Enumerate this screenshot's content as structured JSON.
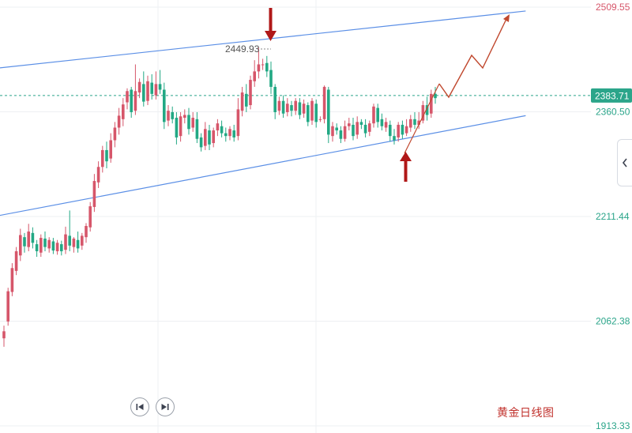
{
  "chart_data": {
    "type": "candlestick",
    "title": "",
    "xlabel": "",
    "ylabel": "",
    "ylim": [
      1913.33,
      2509.55
    ],
    "y_ticks": [
      "2509.55",
      "2360.50",
      "2211.44",
      "2062.38",
      "1913.33"
    ],
    "current_price": "2383.71",
    "annotation_high": "2449.93",
    "grid": true,
    "candles": [
      [
        2038,
        2048,
        2026,
        2056
      ],
      [
        2062,
        2105,
        2056,
        2110
      ],
      [
        2104,
        2138,
        2098,
        2145
      ],
      [
        2134,
        2162,
        2128,
        2168
      ],
      [
        2156,
        2185,
        2148,
        2194
      ],
      [
        2182,
        2169,
        2160,
        2188
      ],
      [
        2168,
        2190,
        2162,
        2201
      ],
      [
        2188,
        2174,
        2166,
        2196
      ],
      [
        2172,
        2162,
        2154,
        2178
      ],
      [
        2160,
        2181,
        2154,
        2186
      ],
      [
        2180,
        2168,
        2162,
        2190
      ],
      [
        2166,
        2178,
        2160,
        2182
      ],
      [
        2176,
        2163,
        2158,
        2181
      ],
      [
        2162,
        2174,
        2157,
        2178
      ],
      [
        2172,
        2162,
        2156,
        2177
      ],
      [
        2164,
        2186,
        2158,
        2197
      ],
      [
        2184,
        2170,
        2162,
        2220
      ],
      [
        2168,
        2180,
        2160,
        2182
      ],
      [
        2178,
        2166,
        2160,
        2190
      ],
      [
        2170,
        2184,
        2164,
        2188
      ],
      [
        2182,
        2198,
        2174,
        2202
      ],
      [
        2196,
        2226,
        2190,
        2232
      ],
      [
        2225,
        2262,
        2218,
        2272
      ],
      [
        2260,
        2282,
        2252,
        2290
      ],
      [
        2282,
        2306,
        2274,
        2312
      ],
      [
        2306,
        2290,
        2280,
        2318
      ],
      [
        2294,
        2320,
        2288,
        2330
      ],
      [
        2320,
        2338,
        2310,
        2346
      ],
      [
        2338,
        2355,
        2328,
        2366
      ],
      [
        2350,
        2371,
        2340,
        2380
      ],
      [
        2374,
        2390,
        2364,
        2394
      ],
      [
        2392,
        2360,
        2352,
        2396
      ],
      [
        2362,
        2390,
        2356,
        2428
      ],
      [
        2388,
        2403,
        2380,
        2408
      ],
      [
        2400,
        2375,
        2368,
        2418
      ],
      [
        2376,
        2404,
        2370,
        2412
      ],
      [
        2402,
        2386,
        2378,
        2414
      ],
      [
        2384,
        2400,
        2378,
        2418
      ],
      [
        2400,
        2392,
        2386,
        2420
      ],
      [
        2392,
        2346,
        2336,
        2402
      ],
      [
        2348,
        2362,
        2340,
        2370
      ],
      [
        2360,
        2350,
        2344,
        2368
      ],
      [
        2352,
        2324,
        2314,
        2360
      ],
      [
        2326,
        2354,
        2318,
        2360
      ],
      [
        2352,
        2356,
        2344,
        2364
      ],
      [
        2356,
        2336,
        2328,
        2366
      ],
      [
        2338,
        2352,
        2332,
        2360
      ],
      [
        2350,
        2322,
        2316,
        2360
      ],
      [
        2324,
        2310,
        2304,
        2330
      ],
      [
        2312,
        2336,
        2306,
        2346
      ],
      [
        2334,
        2314,
        2306,
        2342
      ],
      [
        2316,
        2334,
        2310,
        2338
      ],
      [
        2334,
        2344,
        2326,
        2350
      ],
      [
        2340,
        2330,
        2324,
        2348
      ],
      [
        2330,
        2326,
        2318,
        2338
      ],
      [
        2326,
        2336,
        2320,
        2340
      ],
      [
        2334,
        2324,
        2318,
        2342
      ],
      [
        2326,
        2364,
        2320,
        2380
      ],
      [
        2362,
        2388,
        2354,
        2396
      ],
      [
        2386,
        2368,
        2360,
        2400
      ],
      [
        2370,
        2406,
        2364,
        2412
      ],
      [
        2404,
        2418,
        2396,
        2434
      ],
      [
        2418,
        2428,
        2408,
        2452
      ],
      [
        2428,
        2428,
        2420,
        2436
      ],
      [
        2430,
        2418,
        2410,
        2440
      ],
      [
        2420,
        2396,
        2386,
        2432
      ],
      [
        2396,
        2360,
        2350,
        2400
      ],
      [
        2362,
        2376,
        2356,
        2382
      ],
      [
        2376,
        2358,
        2352,
        2384
      ],
      [
        2360,
        2372,
        2354,
        2380
      ],
      [
        2370,
        2362,
        2354,
        2376
      ],
      [
        2362,
        2376,
        2356,
        2380
      ],
      [
        2374,
        2356,
        2350,
        2380
      ],
      [
        2358,
        2372,
        2352,
        2378
      ],
      [
        2370,
        2346,
        2340,
        2374
      ],
      [
        2348,
        2376,
        2342,
        2380
      ],
      [
        2372,
        2346,
        2338,
        2378
      ],
      [
        2350,
        2350,
        2346,
        2354
      ],
      [
        2350,
        2396,
        2344,
        2398
      ],
      [
        2392,
        2328,
        2316,
        2396
      ],
      [
        2326,
        2340,
        2318,
        2346
      ],
      [
        2338,
        2334,
        2328,
        2344
      ],
      [
        2334,
        2322,
        2316,
        2340
      ],
      [
        2322,
        2340,
        2318,
        2348
      ],
      [
        2340,
        2344,
        2334,
        2352
      ],
      [
        2342,
        2326,
        2320,
        2352
      ],
      [
        2328,
        2346,
        2322,
        2354
      ],
      [
        2346,
        2342,
        2336,
        2350
      ],
      [
        2342,
        2330,
        2324,
        2350
      ],
      [
        2332,
        2344,
        2326,
        2348
      ],
      [
        2344,
        2368,
        2338,
        2372
      ],
      [
        2366,
        2346,
        2338,
        2372
      ],
      [
        2350,
        2340,
        2334,
        2358
      ],
      [
        2338,
        2346,
        2332,
        2352
      ],
      [
        2342,
        2326,
        2318,
        2348
      ],
      [
        2326,
        2320,
        2314,
        2336
      ],
      [
        2324,
        2342,
        2318,
        2346
      ],
      [
        2342,
        2328,
        2322,
        2348
      ],
      [
        2330,
        2340,
        2326,
        2350
      ],
      [
        2338,
        2350,
        2332,
        2356
      ],
      [
        2350,
        2342,
        2336,
        2360
      ],
      [
        2342,
        2348,
        2336,
        2360
      ],
      [
        2348,
        2370,
        2344,
        2376
      ],
      [
        2370,
        2356,
        2348,
        2382
      ],
      [
        2358,
        2386,
        2352,
        2392
      ],
      [
        2386,
        2380,
        2372,
        2396
      ]
    ]
  },
  "caption": "黄金日线图",
  "colors": {
    "up": "#d6566a",
    "down": "#22a884",
    "channel": "#5b8fe6",
    "price_line": "#2ba58a",
    "arrow_marker": "#b01818",
    "projection": "#c0482e",
    "grid": "#eef0f3",
    "axis_text": "#555555",
    "price_tag_bg": "#2ba58a",
    "price_tag_text": "#ffffff"
  },
  "icons": {
    "prev": "skip-back-icon",
    "next": "skip-forward-icon",
    "side_tab": "chevron-left-icon"
  }
}
